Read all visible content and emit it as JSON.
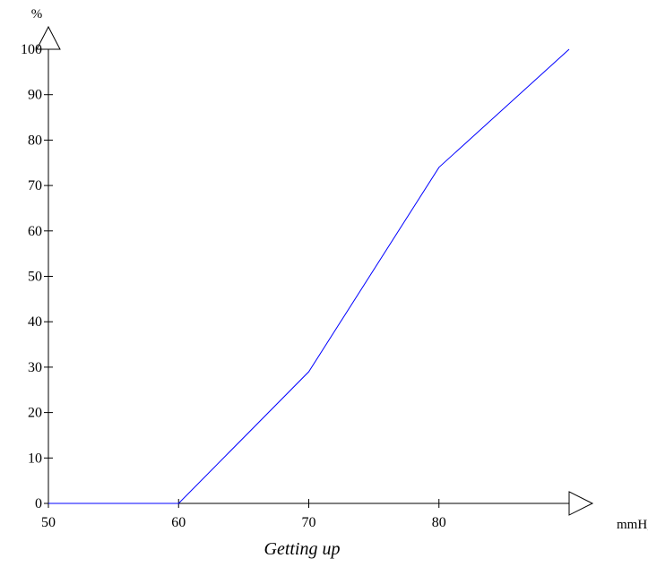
{
  "chart_data": {
    "type": "line",
    "title": "",
    "caption": "Getting up",
    "xlabel": "mmHg",
    "ylabel": "%",
    "xlim": [
      50,
      90
    ],
    "ylim": [
      0,
      100
    ],
    "x_ticks": [
      50,
      60,
      70,
      80
    ],
    "y_ticks": [
      0,
      10,
      20,
      30,
      40,
      50,
      60,
      70,
      80,
      90,
      100
    ],
    "grid": false,
    "legend": "none",
    "series": [
      {
        "color": "#0000ff",
        "x": [
          50,
          60,
          70,
          80,
          90
        ],
        "y": [
          0,
          0,
          29,
          74,
          100
        ]
      }
    ],
    "axis_color": "#000000"
  }
}
